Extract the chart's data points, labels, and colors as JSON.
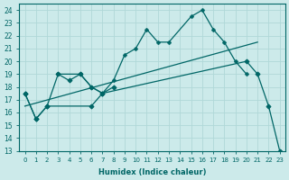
{
  "xlabel": "Humidex (Indice chaleur)",
  "bg_color": "#cceaea",
  "grid_color": "#b0d8d8",
  "line_color": "#006666",
  "xlim": [
    -0.5,
    23.5
  ],
  "ylim": [
    13,
    24.5
  ],
  "yticks": [
    13,
    14,
    15,
    16,
    17,
    18,
    19,
    20,
    21,
    22,
    23,
    24
  ],
  "xticks": [
    0,
    1,
    2,
    3,
    4,
    5,
    6,
    7,
    8,
    9,
    10,
    11,
    12,
    13,
    14,
    15,
    16,
    17,
    18,
    19,
    20,
    21,
    22,
    23
  ],
  "series": [
    {
      "x": [
        0,
        1,
        2,
        3,
        4,
        5,
        6,
        7,
        8
      ],
      "y": [
        17.5,
        15.5,
        16.5,
        19.0,
        18.5,
        19.0,
        18.0,
        17.5,
        18.0
      ],
      "marker": "D",
      "markersize": 2.5,
      "lw": 0.9
    },
    {
      "x": [
        3,
        5,
        6,
        7,
        8,
        9,
        10,
        11,
        12,
        13,
        15,
        16,
        17,
        18,
        19,
        20
      ],
      "y": [
        19.0,
        19.0,
        18.0,
        17.5,
        18.5,
        20.5,
        21.0,
        22.5,
        21.5,
        21.5,
        23.5,
        24.0,
        22.5,
        21.5,
        20.0,
        19.0
      ],
      "marker": "P",
      "markersize": 2.5,
      "lw": 0.9
    },
    {
      "x": [
        0,
        1,
        2,
        6,
        7,
        20,
        21,
        22,
        23
      ],
      "y": [
        17.5,
        15.5,
        16.5,
        16.5,
        17.5,
        20.0,
        19.0,
        16.5,
        13.0
      ],
      "marker": "D",
      "markersize": 2.5,
      "lw": 0.9
    },
    {
      "x": [
        0,
        21
      ],
      "y": [
        16.5,
        21.5
      ],
      "marker": null,
      "markersize": 0,
      "lw": 0.9
    }
  ]
}
